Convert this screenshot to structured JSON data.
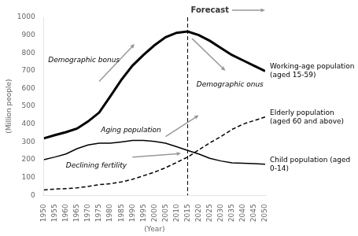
{
  "chart_data": {
    "type": "line",
    "x": [
      1950,
      1955,
      1960,
      1965,
      1970,
      1975,
      1980,
      1985,
      1990,
      1995,
      2000,
      2005,
      2010,
      2015,
      2020,
      2025,
      2030,
      2035,
      2040,
      2045,
      2050
    ],
    "series": [
      {
        "name": "Working-age population (aged 15-59)",
        "color": "#000000",
        "line_style": "solid",
        "values": [
          320,
          338,
          355,
          375,
          415,
          465,
          555,
          648,
          728,
          788,
          843,
          888,
          913,
          920,
          900,
          868,
          828,
          788,
          758,
          728,
          698
        ]
      },
      {
        "name": "Child population (aged 0-14)",
        "color": "#000000",
        "line_style": "solid",
        "values": [
          200,
          215,
          232,
          262,
          283,
          293,
          293,
          300,
          308,
          308,
          303,
          293,
          273,
          252,
          232,
          208,
          193,
          183,
          180,
          178,
          175
        ]
      },
      {
        "name": "Elderly population (aged 60 and above)",
        "color": "#000000",
        "line_style": "dashed",
        "values": [
          30,
          35,
          38,
          42,
          50,
          60,
          65,
          75,
          90,
          110,
          130,
          155,
          185,
          215,
          255,
          295,
          330,
          370,
          400,
          420,
          440
        ]
      }
    ],
    "xlim": [
      1950,
      2050
    ],
    "xticks": [
      1950,
      1955,
      1960,
      1965,
      1970,
      1975,
      1980,
      1985,
      1990,
      1995,
      2000,
      2005,
      2010,
      2015,
      2020,
      2025,
      2030,
      2035,
      2040,
      2045,
      2050
    ],
    "ylim": [
      0,
      1000
    ],
    "yticks": [
      0,
      100,
      200,
      300,
      400,
      500,
      600,
      700,
      800,
      900,
      1000
    ],
    "x_label": "(Year)",
    "y_label": "(Million people)",
    "grid": false,
    "annotations": [
      {
        "text": "Forecast",
        "x": 2015
      },
      {
        "text": "Demographic bonus"
      },
      {
        "text": "Demographic onus"
      },
      {
        "text": "Aging population"
      },
      {
        "text": "Declining fertility"
      }
    ]
  }
}
